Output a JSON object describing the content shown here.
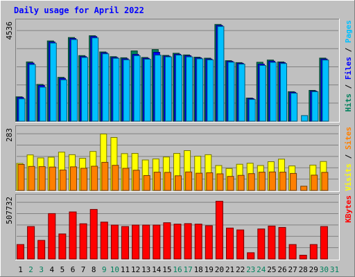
{
  "chart_data": {
    "type": "bar",
    "title": "Daily usage for April 2022",
    "x": [
      "1",
      "2",
      "3",
      "4",
      "5",
      "6",
      "7",
      "8",
      "9",
      "10",
      "11",
      "12",
      "13",
      "14",
      "15",
      "16",
      "17",
      "18",
      "19",
      "20",
      "21",
      "22",
      "23",
      "24",
      "25",
      "26",
      "27",
      "28",
      "29",
      "30",
      "31"
    ],
    "weekend_days": [
      "2",
      "3",
      "9",
      "10",
      "16",
      "17",
      "23",
      "24",
      "30",
      "31"
    ],
    "panels": [
      {
        "id": "top",
        "ymax_label": "4536",
        "ymax": 4536,
        "right_labels": [
          {
            "text": "Hits",
            "color": "#00805c"
          },
          {
            "text": " / ",
            "color": "#000000"
          },
          {
            "text": "Files",
            "color": "#0000ff"
          },
          {
            "text": " / ",
            "color": "#000000"
          },
          {
            "text": "Pages",
            "color": "#00c0ff"
          }
        ],
        "series": [
          {
            "name": "Hits",
            "color": "#00805c",
            "values": [
              1132,
              2755,
              1708,
              3730,
              2035,
              3886,
              3045,
              3969,
              3217,
              2997,
              2946,
              3264,
              2960,
              3326,
              3056,
              3157,
              3078,
              2973,
              2927,
              4493,
              2812,
              2722,
              1074,
              2739,
              2841,
              2753,
              1370,
              0,
              1432,
              2931,
              0
            ]
          },
          {
            "name": "Files",
            "color": "#0000ff",
            "values": [
              1100,
              2700,
              1660,
              3680,
              1990,
              3840,
              3000,
              3930,
              3180,
              2960,
              2900,
              3100,
              2920,
              3200,
              3020,
              3110,
              3040,
              2940,
              2890,
              4450,
              2780,
              2690,
              1050,
              2650,
              2790,
              2720,
              1340,
              0,
              1400,
              2890,
              0
            ]
          },
          {
            "name": "Pages",
            "color": "#00c0ff",
            "values": [
              1040,
              2630,
              1580,
              3630,
              1920,
              3790,
              2960,
              3870,
              3130,
              2920,
              2850,
              3040,
              2880,
              3070,
              2990,
              3070,
              2990,
              2900,
              2850,
              4400,
              2740,
              2650,
              1010,
              2590,
              2730,
              2680,
              1300,
              260,
              1370,
              2840,
              0
            ]
          }
        ]
      },
      {
        "id": "middle",
        "ymax_label": "283",
        "ymax": 283,
        "right_labels": [
          {
            "text": "Visits",
            "color": "#ffff00"
          },
          {
            "text": " / ",
            "color": "#000000"
          },
          {
            "text": "Sites",
            "color": "#ff8000"
          }
        ],
        "series": [
          {
            "name": "Visits",
            "color": "#ffff00",
            "values": [
              127,
              167,
              153,
              156,
              180,
              168,
              151,
              183,
              265,
              249,
              173,
              174,
              143,
              148,
              157,
              174,
              187,
              161,
              168,
              117,
              103,
              123,
              128,
              117,
              135,
              147,
              115,
              0,
              119,
              136,
              0
            ]
          },
          {
            "name": "Sites",
            "color": "#ff8000",
            "values": [
              122,
              113,
              112,
              110,
              96,
              111,
              104,
              114,
              132,
              118,
              104,
              95,
              70,
              86,
              85,
              69,
              87,
              81,
              83,
              78,
              66,
              71,
              79,
              86,
              87,
              86,
              80,
              20,
              72,
              85,
              0
            ]
          }
        ]
      },
      {
        "id": "bottom",
        "ymax_label": "507732",
        "ymax": 507732,
        "right_labels": [
          {
            "text": "KBytes",
            "color": "#ff0000"
          }
        ],
        "series": [
          {
            "name": "KBytes",
            "color": "#ff0000",
            "values": [
              122000,
              274000,
              157000,
              383000,
              211000,
              397000,
              297000,
              418000,
              311000,
              286000,
              274000,
              286000,
              286000,
              286000,
              306000,
              294000,
              298000,
              294000,
              281000,
              487000,
              261000,
              245000,
              53000,
              253000,
              278000,
              266000,
              122000,
              32000,
              122000,
              274000,
              0
            ]
          }
        ]
      }
    ]
  }
}
